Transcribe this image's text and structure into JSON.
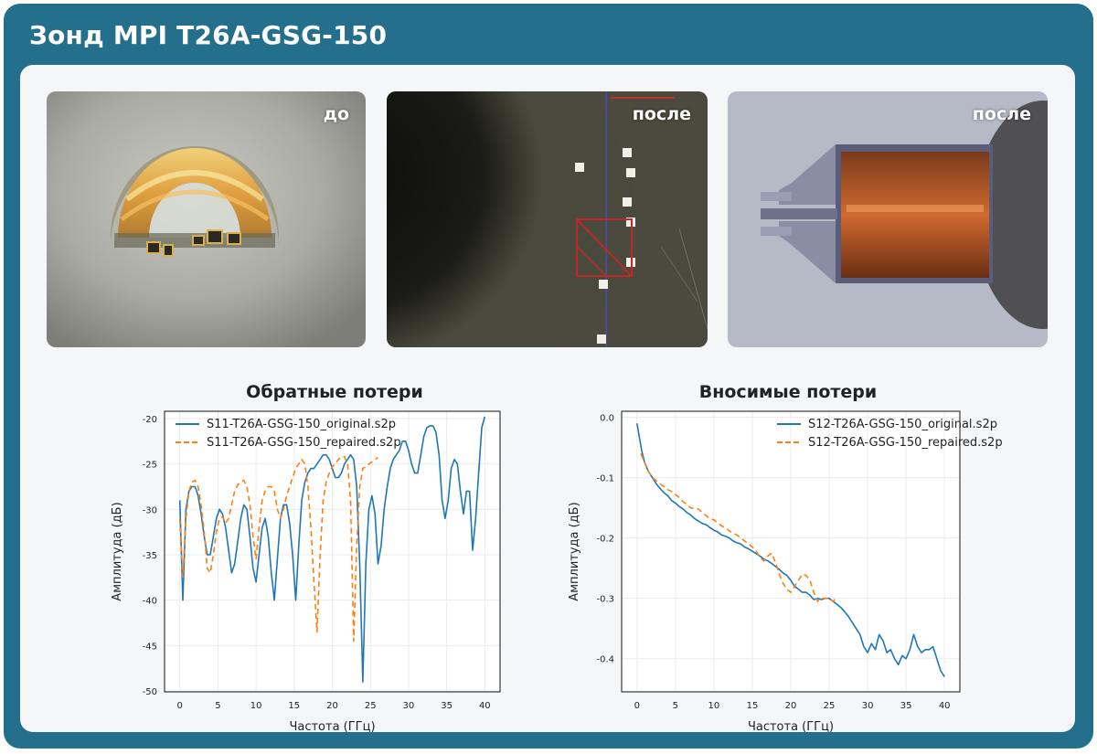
{
  "header": {
    "title": "Зонд MPI T26A-GSG-150"
  },
  "photos": [
    {
      "label": "до"
    },
    {
      "label": "после"
    },
    {
      "label": "после"
    }
  ],
  "colors": {
    "frame": "#246f8c",
    "original": "#1f77b4",
    "repaired": "#ff7f0e"
  },
  "chart_data": [
    {
      "type": "line",
      "title": "Обратные потери",
      "xlabel": "Частота (ГГц)",
      "ylabel": "Амплитуда (дБ)",
      "xlim": [
        -2,
        42
      ],
      "ylim": [
        -50.1,
        -19.2
      ],
      "xticks": [
        0,
        5,
        10,
        15,
        20,
        25,
        30,
        35,
        40
      ],
      "yticks": [
        -20,
        -25,
        -30,
        -35,
        -40,
        -45,
        -50
      ],
      "legend_position": "top-left",
      "series": [
        {
          "name": "S11-T26A-GSG-150_original.s2p",
          "style": "solid",
          "x": [
            0,
            0.4,
            0.8,
            1.2,
            1.6,
            2,
            2.4,
            2.8,
            3.2,
            3.6,
            4,
            4.4,
            4.8,
            5.2,
            5.6,
            6,
            6.4,
            6.8,
            7.2,
            7.6,
            8,
            8.4,
            8.8,
            9.2,
            9.6,
            10,
            10.4,
            10.8,
            11.2,
            11.6,
            12,
            12.4,
            12.8,
            13.2,
            13.6,
            14,
            14.4,
            14.8,
            15.2,
            15.6,
            16,
            16.4,
            16.8,
            17.2,
            17.6,
            18,
            18.4,
            18.8,
            19.2,
            19.6,
            20,
            20.4,
            20.8,
            21.2,
            21.6,
            22,
            22.4,
            22.8,
            23.2,
            23.6,
            24,
            24.4,
            24.8,
            25.2,
            25.6,
            26,
            26.4,
            26.8,
            27.2,
            27.6,
            28,
            28.4,
            28.8,
            29.2,
            29.6,
            30,
            30.4,
            30.8,
            31.2,
            31.6,
            32,
            32.4,
            32.8,
            33.2,
            33.6,
            34,
            34.4,
            34.8,
            35.2,
            35.6,
            36,
            36.4,
            36.8,
            37.2,
            37.6,
            38,
            38.4,
            38.8,
            39.2,
            39.6,
            40
          ],
          "y": [
            -29,
            -40,
            -30,
            -28,
            -27.5,
            -27.5,
            -28.5,
            -30.5,
            -33,
            -35,
            -35,
            -33,
            -31,
            -30,
            -30.5,
            -32,
            -34.5,
            -37,
            -36,
            -33.5,
            -31,
            -29.5,
            -30,
            -33,
            -36.5,
            -38,
            -35,
            -32,
            -31,
            -33,
            -37,
            -40,
            -35.5,
            -31,
            -29.5,
            -29.5,
            -31.5,
            -35,
            -40,
            -34,
            -29,
            -27,
            -26,
            -25.5,
            -25.5,
            -25,
            -24.5,
            -24,
            -24,
            -24.5,
            -25.5,
            -26.5,
            -26.5,
            -26,
            -25,
            -24.5,
            -24,
            -24.5,
            -27.5,
            -36,
            -49,
            -36,
            -30,
            -28.5,
            -30.5,
            -36,
            -34,
            -30,
            -27.5,
            -25.5,
            -24.5,
            -24,
            -23.5,
            -22.5,
            -22.5,
            -23.5,
            -25,
            -26,
            -26,
            -24,
            -22,
            -21,
            -20.8,
            -20.8,
            -21.5,
            -24,
            -29,
            -31,
            -29,
            -25.5,
            -24.5,
            -25,
            -28,
            -30.5,
            -28,
            -28,
            -34.5,
            -31,
            -26,
            -21,
            -19.8
          ]
        },
        {
          "name": "S11-T26A-GSG-150_repaired.s2p",
          "style": "dashed",
          "x": [
            0,
            0.4,
            0.8,
            1.2,
            1.6,
            2,
            2.4,
            2.8,
            3.2,
            3.6,
            4,
            4.4,
            4.8,
            5.2,
            5.6,
            6,
            6.4,
            6.8,
            7.2,
            7.6,
            8,
            8.4,
            8.8,
            9.2,
            9.6,
            10,
            10.4,
            10.8,
            11.2,
            11.6,
            12,
            12.4,
            12.8,
            13.2,
            13.6,
            14,
            14.4,
            14.8,
            15.2,
            15.6,
            16,
            16.4,
            16.8,
            17.2,
            17.6,
            18,
            18.4,
            18.8,
            19.2,
            19.6,
            20,
            20.4,
            20.8,
            21.2,
            21.6,
            22,
            22.4,
            22.8,
            23.2,
            23.6,
            24,
            24.4,
            24.8,
            25.2,
            25.6,
            26
          ],
          "y": [
            -31,
            -37.5,
            -31,
            -28,
            -27,
            -26.8,
            -27.5,
            -29.5,
            -32.5,
            -36.5,
            -37,
            -35,
            -32.5,
            -31,
            -30.8,
            -31.5,
            -31,
            -29.5,
            -28,
            -27.3,
            -27,
            -26.8,
            -27.5,
            -29.5,
            -33,
            -35.5,
            -32,
            -29,
            -28,
            -27.5,
            -27.5,
            -28,
            -30,
            -31,
            -30,
            -28.5,
            -27.5,
            -26.5,
            -25.5,
            -25,
            -24.5,
            -25,
            -27.5,
            -32,
            -38,
            -43.5,
            -35,
            -29,
            -27,
            -26,
            -25.3,
            -25,
            -24.5,
            -24.2,
            -24.2,
            -25,
            -29,
            -44.5,
            -34,
            -27.5,
            -25.5,
            -25.3,
            -25,
            -24.8,
            -24.5,
            -24.3
          ]
        }
      ]
    },
    {
      "type": "line",
      "title": "Вносимые потери",
      "xlabel": "Частота (ГГц)",
      "ylabel": "Амплитуда (дБ)",
      "xlim": [
        -2,
        42
      ],
      "ylim": [
        -0.455,
        0.01
      ],
      "xticks": [
        0,
        5,
        10,
        15,
        20,
        25,
        30,
        35,
        40
      ],
      "yticks": [
        0.0,
        -0.1,
        -0.2,
        -0.3,
        -0.4
      ],
      "legend_position": "top-right",
      "series": [
        {
          "name": "S12-T26A-GSG-150_original.s2p",
          "style": "solid",
          "x": [
            0,
            0.2,
            0.4,
            0.6,
            0.8,
            1,
            1.5,
            2,
            2.5,
            3,
            3.5,
            4,
            4.5,
            5,
            5.5,
            6,
            6.5,
            7,
            7.5,
            8,
            8.5,
            9,
            9.5,
            10,
            10.5,
            11,
            11.5,
            12,
            12.5,
            13,
            13.5,
            14,
            14.5,
            15,
            15.5,
            16,
            16.5,
            17,
            17.5,
            18,
            18.5,
            19,
            19.5,
            20,
            20.5,
            21,
            21.5,
            22,
            22.5,
            23,
            23.5,
            24,
            24.5,
            25,
            25.5,
            26,
            26.5,
            27,
            27.5,
            28,
            28.5,
            29,
            29.5,
            30,
            30.5,
            31,
            31.5,
            32,
            32.5,
            33,
            33.5,
            34,
            34.5,
            35,
            35.5,
            36,
            36.5,
            37,
            37.5,
            38,
            38.5,
            39,
            39.5,
            40
          ],
          "y": [
            -0.01,
            -0.025,
            -0.04,
            -0.055,
            -0.065,
            -0.075,
            -0.09,
            -0.1,
            -0.11,
            -0.118,
            -0.125,
            -0.13,
            -0.138,
            -0.142,
            -0.148,
            -0.152,
            -0.158,
            -0.162,
            -0.168,
            -0.172,
            -0.176,
            -0.178,
            -0.183,
            -0.187,
            -0.19,
            -0.195,
            -0.197,
            -0.2,
            -0.205,
            -0.208,
            -0.21,
            -0.215,
            -0.218,
            -0.222,
            -0.226,
            -0.23,
            -0.235,
            -0.238,
            -0.242,
            -0.247,
            -0.252,
            -0.258,
            -0.262,
            -0.27,
            -0.28,
            -0.285,
            -0.29,
            -0.29,
            -0.295,
            -0.302,
            -0.3,
            -0.302,
            -0.3,
            -0.3,
            -0.305,
            -0.31,
            -0.315,
            -0.322,
            -0.33,
            -0.34,
            -0.35,
            -0.36,
            -0.38,
            -0.39,
            -0.375,
            -0.385,
            -0.36,
            -0.37,
            -0.39,
            -0.385,
            -0.4,
            -0.41,
            -0.395,
            -0.4,
            -0.385,
            -0.36,
            -0.38,
            -0.39,
            -0.385,
            -0.385,
            -0.38,
            -0.4,
            -0.42,
            -0.43
          ],
          "note": ""
        },
        {
          "name": "S12-T26A-GSG-150_repaired.s2p",
          "style": "dashed",
          "x": [
            0.5,
            1,
            1.5,
            2,
            2.5,
            3,
            3.5,
            4,
            4.5,
            5,
            5.5,
            6,
            6.5,
            7,
            7.5,
            8,
            8.5,
            9,
            9.5,
            10,
            10.5,
            11,
            11.5,
            12,
            12.5,
            13,
            13.5,
            14,
            14.5,
            15,
            15.5,
            16,
            16.5,
            17,
            17.5,
            18,
            18.5,
            19,
            19.5,
            20,
            20.5,
            21,
            21.5,
            22,
            22.5,
            23,
            23.5,
            24,
            24.5,
            25,
            25.5,
            26
          ],
          "y": [
            -0.06,
            -0.075,
            -0.09,
            -0.1,
            -0.105,
            -0.11,
            -0.115,
            -0.12,
            -0.123,
            -0.128,
            -0.133,
            -0.14,
            -0.145,
            -0.15,
            -0.152,
            -0.152,
            -0.158,
            -0.163,
            -0.168,
            -0.17,
            -0.175,
            -0.18,
            -0.183,
            -0.188,
            -0.192,
            -0.195,
            -0.2,
            -0.205,
            -0.21,
            -0.215,
            -0.222,
            -0.232,
            -0.238,
            -0.23,
            -0.225,
            -0.24,
            -0.26,
            -0.275,
            -0.285,
            -0.29,
            -0.28,
            -0.27,
            -0.26,
            -0.262,
            -0.27,
            -0.29,
            -0.305,
            -0.3,
            -0.3,
            -0.3,
            -0.305,
            -0.298
          ]
        }
      ]
    }
  ]
}
